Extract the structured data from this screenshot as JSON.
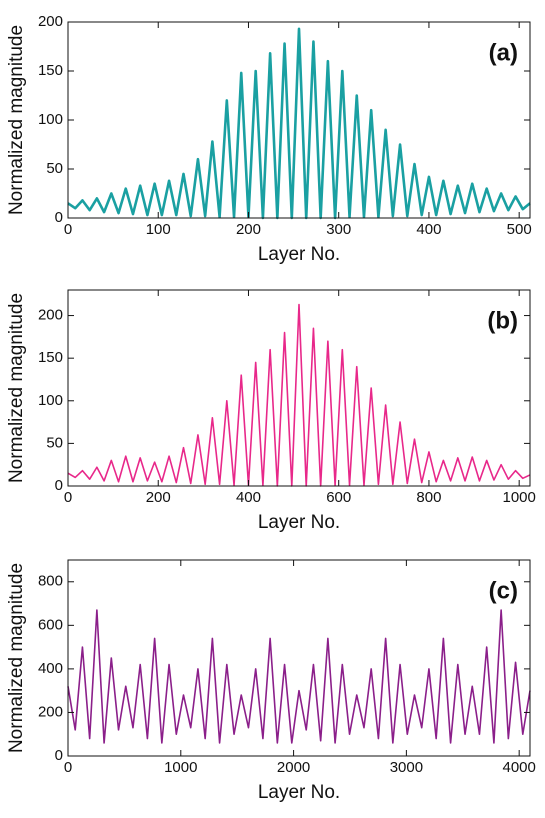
{
  "chart_data": [
    {
      "type": "line",
      "annotation": "(a)",
      "x_label": "Layer No.",
      "y_label": "Normalized magnitude",
      "color": "#1aa0a2",
      "xlim": [
        0,
        512
      ],
      "ylim": [
        0,
        200
      ],
      "xticks": [
        0,
        100,
        200,
        300,
        400,
        500
      ],
      "yticks": [
        0,
        50,
        100,
        150,
        200
      ],
      "x": [
        0,
        8,
        16,
        24,
        32,
        40,
        48,
        56,
        64,
        72,
        80,
        88,
        96,
        104,
        112,
        120,
        128,
        136,
        144,
        152,
        160,
        168,
        176,
        184,
        192,
        200,
        208,
        216,
        224,
        232,
        240,
        248,
        256,
        264,
        272,
        280,
        288,
        296,
        304,
        312,
        320,
        328,
        336,
        344,
        352,
        360,
        368,
        376,
        384,
        392,
        400,
        408,
        416,
        424,
        432,
        440,
        448,
        456,
        464,
        472,
        480,
        488,
        496,
        504,
        512
      ],
      "series": [
        {
          "values": [
            15,
            10,
            18,
            8,
            20,
            6,
            25,
            5,
            30,
            4,
            33,
            3,
            35,
            3,
            38,
            3,
            45,
            2,
            60,
            2,
            78,
            1,
            120,
            1,
            148,
            1,
            150,
            0,
            168,
            0,
            178,
            0,
            193,
            0,
            180,
            0,
            160,
            0,
            150,
            1,
            125,
            1,
            110,
            1,
            90,
            2,
            75,
            2,
            55,
            3,
            42,
            3,
            38,
            4,
            33,
            5,
            35,
            6,
            30,
            7,
            25,
            8,
            22,
            9,
            15
          ]
        }
      ]
    },
    {
      "type": "line",
      "annotation": "(b)",
      "x_label": "Layer No.",
      "y_label": "Normalized magnitude",
      "color": "#e8288a",
      "xlim": [
        0,
        1024
      ],
      "ylim": [
        0,
        230
      ],
      "xticks": [
        0,
        200,
        400,
        600,
        800,
        1000
      ],
      "yticks": [
        0,
        50,
        100,
        150,
        200
      ],
      "x": [
        0,
        16,
        32,
        48,
        64,
        80,
        96,
        112,
        128,
        144,
        160,
        176,
        192,
        208,
        224,
        240,
        256,
        272,
        288,
        304,
        320,
        336,
        352,
        368,
        384,
        400,
        416,
        432,
        448,
        464,
        480,
        496,
        512,
        528,
        544,
        560,
        576,
        592,
        608,
        624,
        640,
        656,
        672,
        688,
        704,
        720,
        736,
        752,
        768,
        784,
        800,
        816,
        832,
        848,
        864,
        880,
        896,
        912,
        928,
        944,
        960,
        976,
        992,
        1008,
        1024
      ],
      "series": [
        {
          "values": [
            15,
            10,
            18,
            8,
            22,
            6,
            30,
            5,
            35,
            5,
            33,
            6,
            28,
            5,
            35,
            4,
            45,
            3,
            60,
            2,
            80,
            2,
            100,
            1,
            130,
            1,
            145,
            1,
            160,
            0,
            180,
            0,
            213,
            0,
            185,
            0,
            170,
            1,
            160,
            1,
            140,
            1,
            115,
            2,
            95,
            2,
            75,
            3,
            55,
            4,
            40,
            5,
            30,
            6,
            33,
            6,
            34,
            6,
            30,
            7,
            25,
            8,
            18,
            9,
            13
          ]
        }
      ]
    },
    {
      "type": "line",
      "annotation": "(c)",
      "x_label": "Layer No.",
      "y_label": "Normalized magnitude",
      "color": "#8b1f8a",
      "xlim": [
        0,
        4096
      ],
      "ylim": [
        0,
        900
      ],
      "xticks": [
        0,
        1000,
        2000,
        3000,
        4000
      ],
      "yticks": [
        0,
        200,
        400,
        600,
        800
      ],
      "x": [
        0,
        64,
        128,
        192,
        256,
        320,
        384,
        448,
        512,
        576,
        640,
        704,
        768,
        832,
        896,
        960,
        1024,
        1088,
        1152,
        1216,
        1280,
        1344,
        1408,
        1472,
        1536,
        1600,
        1664,
        1728,
        1792,
        1856,
        1920,
        1984,
        2048,
        2112,
        2176,
        2240,
        2304,
        2368,
        2432,
        2496,
        2560,
        2624,
        2688,
        2752,
        2816,
        2880,
        2944,
        3008,
        3072,
        3136,
        3200,
        3264,
        3328,
        3392,
        3456,
        3520,
        3584,
        3648,
        3712,
        3776,
        3840,
        3904,
        3968,
        4032,
        4096
      ],
      "series": [
        {
          "values": [
            320,
            120,
            500,
            80,
            670,
            60,
            450,
            120,
            320,
            130,
            420,
            80,
            540,
            60,
            420,
            100,
            280,
            130,
            400,
            80,
            540,
            60,
            420,
            100,
            280,
            130,
            400,
            80,
            540,
            60,
            420,
            60,
            300,
            120,
            420,
            70,
            540,
            60,
            420,
            100,
            280,
            130,
            400,
            80,
            540,
            60,
            420,
            100,
            280,
            130,
            400,
            80,
            540,
            60,
            420,
            100,
            320,
            100,
            500,
            60,
            670,
            80,
            430,
            100,
            300
          ]
        }
      ]
    }
  ]
}
